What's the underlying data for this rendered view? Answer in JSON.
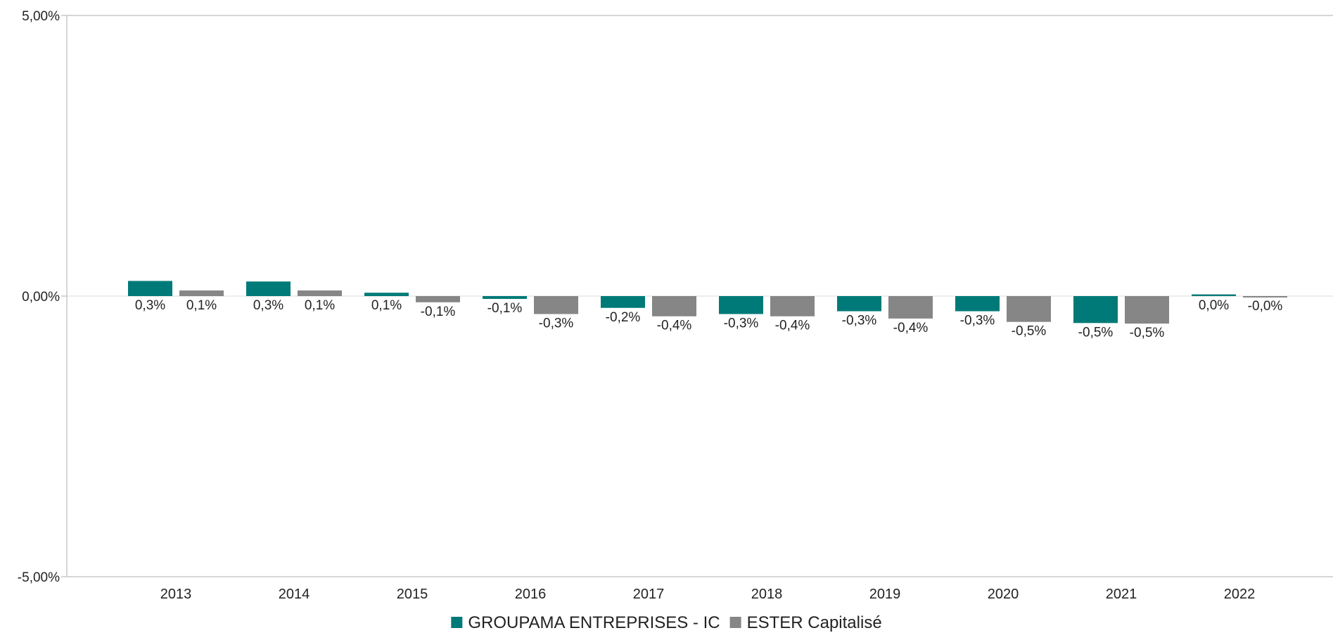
{
  "colors": {
    "series_1": "#007a78",
    "series_2": "#868686",
    "axis": "#c8c8c8",
    "zero_line": "#e2e2e2"
  },
  "chart_data": {
    "type": "bar",
    "categories": [
      "2013",
      "2014",
      "2015",
      "2016",
      "2017",
      "2018",
      "2019",
      "2020",
      "2021",
      "2022"
    ],
    "series": [
      {
        "name": "GROUPAMA ENTREPRISES - IC",
        "values": [
          0.27,
          0.26,
          0.06,
          -0.05,
          -0.21,
          -0.32,
          -0.27,
          -0.27,
          -0.48,
          0.03
        ],
        "labels": [
          "0,3%",
          "0,3%",
          "0,1%",
          "-0,1%",
          "-0,2%",
          "-0,3%",
          "-0,3%",
          "-0,3%",
          "-0,5%",
          "0,0%"
        ]
      },
      {
        "name": "ESTER Capitalisé",
        "values": [
          0.1,
          0.1,
          -0.11,
          -0.32,
          -0.36,
          -0.36,
          -0.4,
          -0.46,
          -0.49,
          -0.01
        ],
        "labels": [
          "0,1%",
          "0,1%",
          "-0,1%",
          "-0,3%",
          "-0,4%",
          "-0,4%",
          "-0,4%",
          "-0,5%",
          "-0,5%",
          "-0,0%"
        ]
      }
    ],
    "ylim": [
      -5,
      5
    ],
    "yticks": [
      5,
      0,
      -5
    ],
    "ytick_labels": [
      "5,00%",
      "0,00%",
      "-5,00%"
    ],
    "title": "",
    "xlabel": "",
    "ylabel": "",
    "grid": false,
    "legend_position": "bottom"
  }
}
